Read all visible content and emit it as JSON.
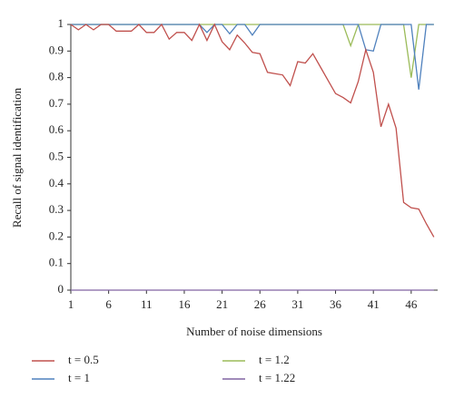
{
  "chart_data": {
    "type": "line",
    "xlabel": "Number of noise dimensions",
    "ylabel": "Recall of signal identification",
    "x": [
      1,
      2,
      3,
      4,
      5,
      6,
      7,
      8,
      9,
      10,
      11,
      12,
      13,
      14,
      15,
      16,
      17,
      18,
      19,
      20,
      21,
      22,
      23,
      24,
      25,
      26,
      27,
      28,
      29,
      30,
      31,
      32,
      33,
      34,
      35,
      36,
      37,
      38,
      39,
      40,
      41,
      42,
      43,
      44,
      45,
      46,
      47,
      48,
      49
    ],
    "xlim": [
      1,
      49.5
    ],
    "xticks": [
      1,
      6,
      11,
      16,
      21,
      26,
      31,
      36,
      41,
      46
    ],
    "ylim": [
      0,
      1
    ],
    "yticks": [
      0,
      0.1,
      0.2,
      0.3,
      0.4,
      0.5,
      0.6,
      0.7,
      0.8,
      0.9,
      1
    ],
    "grid": false,
    "legend": "bottom",
    "series": [
      {
        "name": "t = 0.5",
        "color": "#c0504d",
        "values": [
          1.0,
          0.98,
          1.0,
          0.98,
          1.0,
          1.0,
          0.975,
          0.975,
          0.975,
          1.0,
          0.97,
          0.97,
          1.0,
          0.945,
          0.97,
          0.97,
          0.94,
          1.0,
          0.94,
          1.0,
          0.935,
          0.905,
          0.96,
          0.93,
          0.895,
          0.89,
          0.82,
          0.815,
          0.81,
          0.77,
          0.86,
          0.855,
          0.89,
          0.84,
          0.79,
          0.74,
          0.725,
          0.705,
          0.785,
          0.905,
          0.82,
          0.615,
          0.7,
          0.61,
          0.33,
          0.31,
          0.305,
          0.25,
          0.2
        ]
      },
      {
        "name": "t = 1",
        "color": "#4f81bd",
        "values": [
          1,
          1,
          1,
          1,
          1,
          1,
          1,
          1,
          1,
          1,
          1,
          1,
          1,
          1,
          1,
          1,
          1,
          1,
          0.97,
          1,
          1,
          0.965,
          1,
          1,
          0.96,
          1,
          1,
          1,
          1,
          1,
          1,
          1,
          1,
          1,
          1,
          1,
          1,
          1,
          1,
          0.905,
          0.9,
          1,
          1,
          1,
          1,
          1,
          0.755,
          1,
          1
        ]
      },
      {
        "name": "t = 1.2",
        "color": "#9bbb59",
        "values": [
          1,
          1,
          1,
          1,
          1,
          1,
          1,
          1,
          1,
          1,
          1,
          1,
          1,
          1,
          1,
          1,
          1,
          1,
          1,
          1,
          1,
          1,
          1,
          1,
          1,
          1,
          1,
          1,
          1,
          1,
          1,
          1,
          1,
          1,
          1,
          1,
          1,
          0.92,
          1,
          1,
          1,
          1,
          1,
          1,
          1,
          0.8,
          1,
          1,
          1
        ]
      },
      {
        "name": "t = 1.22",
        "color": "#8064a2",
        "values": [
          0,
          0,
          0,
          0,
          0,
          0,
          0,
          0,
          0,
          0,
          0,
          0,
          0,
          0,
          0,
          0,
          0,
          0,
          0,
          0,
          0,
          0,
          0,
          0,
          0,
          0,
          0,
          0,
          0,
          0,
          0,
          0,
          0,
          0,
          0,
          0,
          0,
          0,
          0,
          0,
          0,
          0,
          0,
          0,
          0,
          0,
          0,
          0,
          0
        ]
      }
    ]
  }
}
